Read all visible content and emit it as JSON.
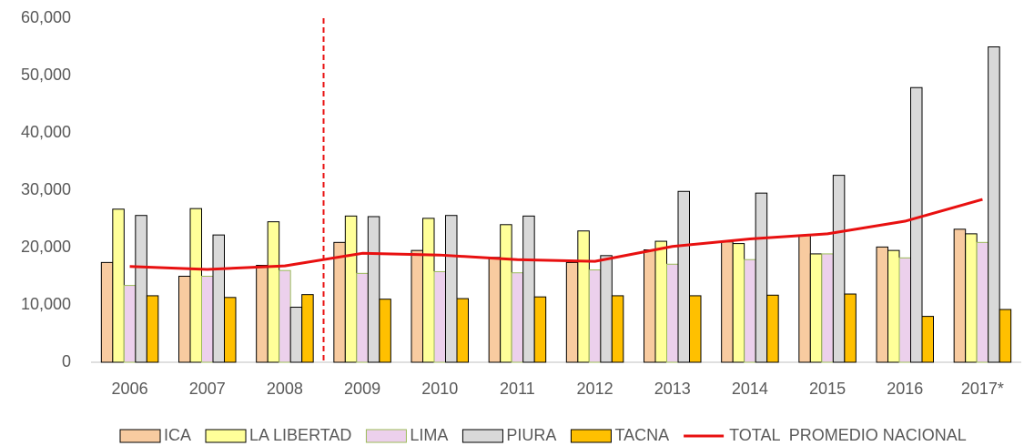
{
  "chart_data": {
    "type": "bar",
    "categories": [
      "2006",
      "2007",
      "2008",
      "2009",
      "2010",
      "2011",
      "2012",
      "2013",
      "2014",
      "2015",
      "2016",
      "2017*"
    ],
    "series": [
      {
        "name": "ICA",
        "type": "bar",
        "color": "#f8cba0",
        "border": "#000000",
        "values": [
          17400,
          15000,
          16900,
          20900,
          19500,
          18300,
          17400,
          19600,
          21000,
          22200,
          20100,
          23200
        ]
      },
      {
        "name": "LA LIBERTAD",
        "type": "bar",
        "color": "#ffff99",
        "border": "#000000",
        "values": [
          26700,
          26800,
          24500,
          25500,
          25100,
          24000,
          22900,
          21100,
          20700,
          18900,
          19500,
          22400
        ]
      },
      {
        "name": "LIMA",
        "type": "bar",
        "color": "#ecd0ec",
        "border": "#9bbb59",
        "values": [
          13400,
          15000,
          16000,
          15500,
          15800,
          15600,
          16100,
          17100,
          17900,
          18900,
          18200,
          20900
        ]
      },
      {
        "name": "PIURA",
        "type": "bar",
        "color": "#d9d9d9",
        "border": "#000000",
        "values": [
          25600,
          22200,
          9600,
          25400,
          25600,
          25500,
          18600,
          29800,
          29500,
          32600,
          47900,
          55000
        ]
      },
      {
        "name": "TACNA",
        "type": "bar",
        "color": "#ffc000",
        "border": "#000000",
        "values": [
          11600,
          11300,
          11800,
          11000,
          11100,
          11400,
          11600,
          11600,
          11700,
          11900,
          8000,
          9200
        ]
      },
      {
        "name": "TOTAL  PROMEDIO NACIONAL",
        "type": "line",
        "color": "#e81010",
        "values": [
          16700,
          16200,
          16800,
          19000,
          18700,
          17900,
          17600,
          20200,
          21500,
          22400,
          24600,
          28400
        ]
      }
    ],
    "ylim": [
      0,
      60000
    ],
    "yticks": [
      0,
      {
        "value": 10000,
        "label": "10,000"
      },
      {
        "value": 20000,
        "label": "20,000"
      },
      {
        "value": 30000,
        "label": "30,000"
      },
      {
        "value": 40000,
        "label": "40,000"
      },
      {
        "value": 50000,
        "label": "50,000"
      },
      {
        "value": 60000,
        "label": "60,000"
      }
    ],
    "grid": false,
    "legend": "bottom"
  }
}
